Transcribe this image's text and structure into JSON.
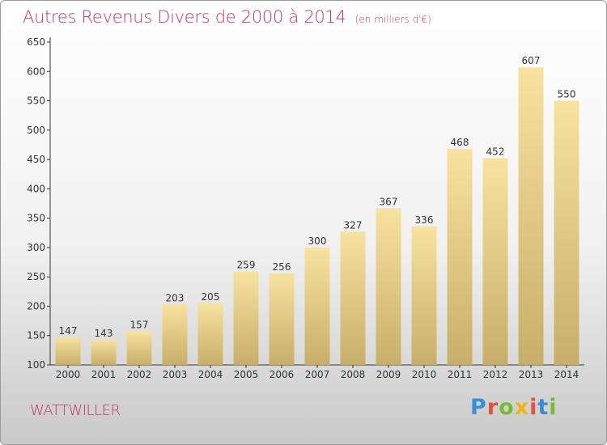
{
  "title": "Autres Revenus Divers de 2000 à 2014",
  "unit_note": "(en milliers d'€)",
  "location": "WATTWILLER",
  "logo": {
    "text": "Proxiti",
    "letter_colors": [
      "#3a8fd4",
      "#e8503a",
      "#7ab833",
      "#f0b418",
      "#e8503a",
      "#3a8fd4",
      "#7ab833"
    ]
  },
  "colors": {
    "title": "#c2366c",
    "bar_light": "#f7e2a0",
    "bar_dark": "#c8af69",
    "axis": "#333333"
  },
  "chart_data": {
    "type": "bar",
    "title": "Autres Revenus Divers de 2000 à 2014",
    "subtitle": "(en milliers d'€)",
    "xlabel": "",
    "ylabel": "",
    "categories": [
      "2000",
      "2001",
      "2002",
      "2003",
      "2004",
      "2005",
      "2006",
      "2007",
      "2008",
      "2009",
      "2010",
      "2011",
      "2012",
      "2013",
      "2014"
    ],
    "values": [
      147,
      143,
      157,
      203,
      205,
      259,
      256,
      300,
      327,
      367,
      336,
      468,
      452,
      607,
      550
    ],
    "ylim": [
      100,
      650
    ],
    "yticks": [
      100,
      150,
      200,
      250,
      300,
      350,
      400,
      450,
      500,
      550,
      600,
      650
    ],
    "data_labels": true,
    "grid": false,
    "legend": "none"
  }
}
